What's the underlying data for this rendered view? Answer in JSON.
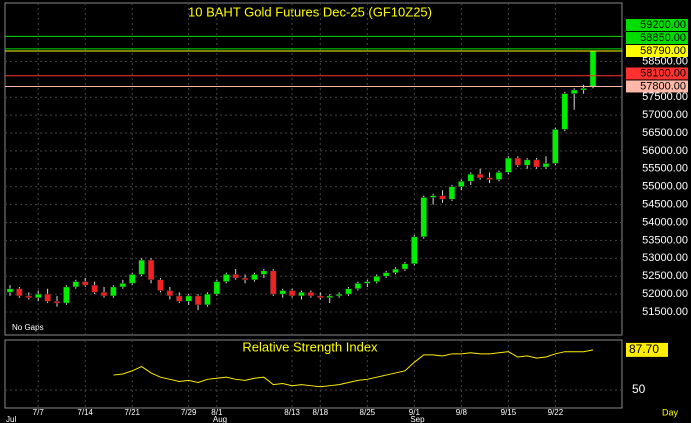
{
  "chart_data": [
    {
      "type": "candlestick",
      "title": "10 BAHT Gold Futures Dec-25 (GF10Z25)",
      "note": "No Gaps",
      "xlabel": "Day",
      "categories": [
        null,
        null,
        null,
        "7/7",
        null,
        null,
        null,
        null,
        "7/14",
        null,
        null,
        null,
        null,
        "7/21",
        null,
        null,
        null,
        null,
        null,
        "7/29",
        null,
        null,
        "8/1",
        null,
        null,
        null,
        null,
        null,
        null,
        null,
        "8/13",
        null,
        null,
        "8/18",
        null,
        null,
        null,
        null,
        "8/25",
        null,
        null,
        null,
        null,
        "9/1",
        null,
        null,
        null,
        null,
        "9/8",
        null,
        null,
        null,
        null,
        "9/15",
        null,
        null,
        null,
        null,
        "9/22",
        null,
        null,
        null,
        null
      ],
      "categories2": [
        "Jul",
        null,
        null,
        null,
        null,
        null,
        null,
        null,
        null,
        null,
        null,
        null,
        null,
        null,
        null,
        null,
        null,
        null,
        null,
        null,
        null,
        null,
        "Aug",
        null,
        null,
        null,
        null,
        null,
        null,
        null,
        null,
        null,
        null,
        null,
        null,
        null,
        null,
        null,
        null,
        null,
        null,
        null,
        null,
        "Sep",
        null,
        null,
        null,
        null,
        null,
        null,
        null,
        null,
        null,
        null,
        null,
        null,
        null,
        null,
        null,
        null,
        null,
        null,
        null
      ],
      "open": [
        52050,
        52150,
        51950,
        51900,
        52000,
        51800,
        51750,
        52200,
        52350,
        52250,
        52050,
        51950,
        52200,
        52300,
        52550,
        52950,
        52400,
        52100,
        51950,
        51800,
        51950,
        51700,
        52000,
        52350,
        52550,
        52450,
        52400,
        52550,
        52650,
        52000,
        52100,
        51950,
        52050,
        51950,
        51900,
        51950,
        52000,
        52150,
        52300,
        52350,
        52500,
        52600,
        52700,
        52850,
        53600,
        54700,
        54750,
        54650,
        55000,
        55150,
        55350,
        55250,
        55200,
        55400,
        55800,
        55600,
        55750,
        55550,
        55650,
        56600,
        57600,
        57700,
        57800
      ],
      "high": [
        52250,
        52200,
        52050,
        52100,
        52150,
        51950,
        52250,
        52400,
        52450,
        52350,
        52200,
        52250,
        52400,
        52600,
        53000,
        53000,
        52450,
        52200,
        52050,
        52000,
        52000,
        52050,
        52400,
        52600,
        52700,
        52550,
        52600,
        52700,
        52700,
        52150,
        52150,
        52100,
        52100,
        52050,
        52000,
        52050,
        52200,
        52350,
        52400,
        52550,
        52650,
        52750,
        52900,
        53650,
        54750,
        54800,
        54900,
        55050,
        55200,
        55400,
        55500,
        55400,
        55450,
        55850,
        55850,
        55800,
        55800,
        55850,
        56650,
        57650,
        57750,
        57850,
        58800
      ],
      "low": [
        51950,
        51900,
        51850,
        51800,
        51750,
        51650,
        51700,
        52150,
        52200,
        52000,
        51900,
        51900,
        52150,
        52250,
        52500,
        52300,
        52050,
        51850,
        51750,
        51700,
        51550,
        51650,
        51950,
        52300,
        52400,
        52300,
        52350,
        52450,
        51950,
        51900,
        51900,
        51850,
        51900,
        51850,
        51750,
        51900,
        51950,
        52100,
        52200,
        52300,
        52450,
        52550,
        52650,
        52800,
        53550,
        54500,
        54550,
        54600,
        54900,
        55050,
        55200,
        55100,
        55150,
        55350,
        55550,
        55500,
        55500,
        55500,
        55600,
        56550,
        57150,
        57600,
        57750
      ],
      "close": [
        52150,
        51950,
        51900,
        52000,
        51800,
        51750,
        52200,
        52350,
        52250,
        52050,
        51950,
        52200,
        52300,
        52550,
        52950,
        52400,
        52100,
        51950,
        51800,
        51950,
        51700,
        52000,
        52350,
        52550,
        52450,
        52400,
        52550,
        52650,
        52000,
        52100,
        51950,
        52050,
        51950,
        51900,
        51950,
        52000,
        52150,
        52300,
        52350,
        52500,
        52600,
        52700,
        52850,
        53600,
        54700,
        54750,
        54650,
        55000,
        55150,
        55350,
        55250,
        55200,
        55400,
        55800,
        55600,
        55750,
        55550,
        55650,
        56600,
        57600,
        57700,
        57750,
        58790
      ],
      "up_color": "#00ee00",
      "down_color": "#ee2222",
      "ylim": [
        50858,
        60131
      ],
      "yticks": [
        {
          "value": 51500,
          "label": "51500.00"
        },
        {
          "value": 52000,
          "label": "52000.00"
        },
        {
          "value": 52500,
          "label": "52500.00"
        },
        {
          "value": 53000,
          "label": "53000.00"
        },
        {
          "value": 53500,
          "label": "53500.00"
        },
        {
          "value": 54000,
          "label": "54000.00"
        },
        {
          "value": 54500,
          "label": "54500.00"
        },
        {
          "value": 55000,
          "label": "55000.00"
        },
        {
          "value": 55500,
          "label": "55500.00"
        },
        {
          "value": 56000,
          "label": "56000.00"
        },
        {
          "value": 56500,
          "label": "56500.00"
        },
        {
          "value": 57000,
          "label": "57000.00"
        },
        {
          "value": 57500,
          "label": "57500.00"
        },
        {
          "value": 58500,
          "label": "58500.00"
        }
      ],
      "levels": [
        {
          "value": 59200,
          "label": "59200.00",
          "color": "#00dd00"
        },
        {
          "value": 58850,
          "label": "58850.00",
          "color": "#00dd00"
        },
        {
          "value": 58790,
          "label": "58790.00",
          "color": "#ffff00"
        },
        {
          "value": 58100,
          "label": "58100.00",
          "color": "#ff3030"
        },
        {
          "value": 57800,
          "label": "57800.00",
          "color": "#ffb8a8"
        }
      ],
      "grid": true
    },
    {
      "type": "line",
      "title": "Relative Strength Index",
      "color": "#ffee00",
      "values": [
        null,
        null,
        null,
        null,
        null,
        null,
        null,
        null,
        null,
        null,
        null,
        64,
        65,
        68,
        72,
        66,
        62,
        60,
        58,
        59,
        57,
        60,
        61,
        62,
        60,
        59,
        61,
        62,
        55,
        56,
        54,
        55,
        54,
        53,
        54,
        55,
        57,
        59,
        60,
        62,
        64,
        66,
        68,
        76,
        83,
        83,
        82,
        84,
        84,
        85,
        84,
        84,
        85,
        86,
        81,
        82,
        80,
        81,
        84,
        86,
        86,
        86,
        87.7
      ],
      "value_labels": [
        null,
        null,
        null,
        null,
        null,
        null,
        null,
        null,
        null,
        null,
        null,
        null,
        null,
        null,
        null,
        null,
        null,
        null,
        null,
        null,
        null,
        null,
        null,
        null,
        null,
        null,
        null,
        null,
        null,
        null,
        null,
        null,
        null,
        null,
        null,
        null,
        null,
        null,
        null,
        null,
        null,
        null,
        null,
        null,
        null,
        null,
        null,
        null,
        null,
        null,
        null,
        null,
        null,
        null,
        null,
        null,
        null,
        null,
        null,
        null,
        null,
        null,
        "87.70"
      ],
      "ylim": [
        33,
        97
      ],
      "yticks": [
        50
      ],
      "grid": true
    }
  ]
}
